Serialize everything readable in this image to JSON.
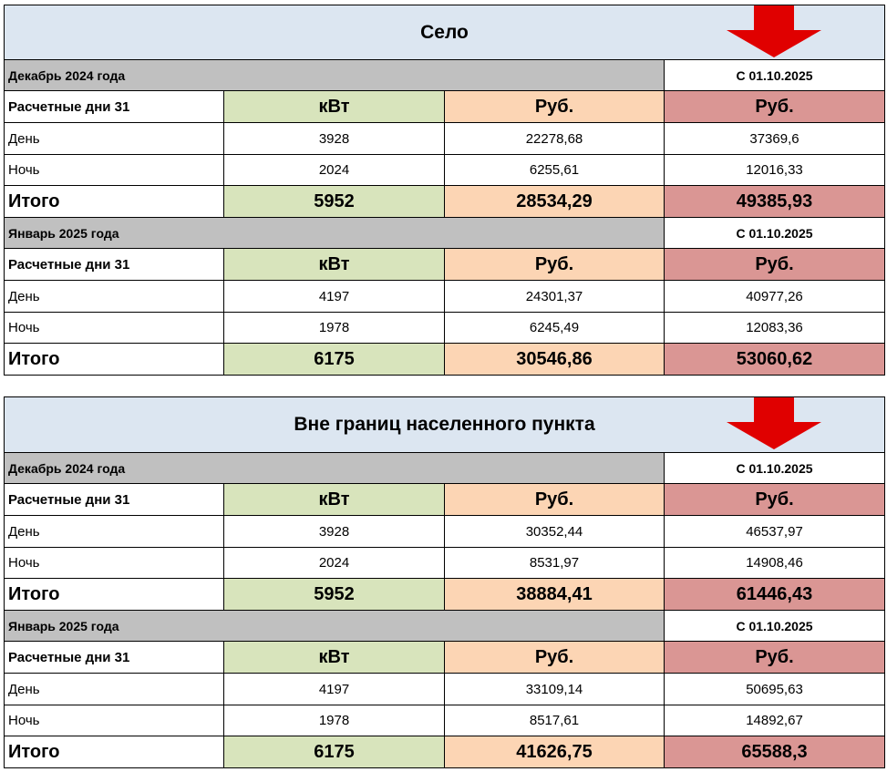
{
  "colors": {
    "title_bg": "#dce6f1",
    "period_bg": "#c0c0c0",
    "kwt_bg": "#d8e4bc",
    "rub_bg": "#fcd5b4",
    "rub_new_bg": "#da9694",
    "arrow": "#e00000"
  },
  "tables": [
    {
      "title": "Село",
      "blocks": [
        {
          "period": "Декабрь 2024 года",
          "since": "С 01.10.2025",
          "days_label": "Расчетные дни 31",
          "col_kwt": "кВт",
          "col_rub": "Руб.",
          "col_rub_new": "Руб.",
          "day": {
            "label": "День",
            "kwt": "3928",
            "rub": "22278,68",
            "rub_new": "37369,6"
          },
          "night": {
            "label": "Ночь",
            "kwt": "2024",
            "rub": "6255,61",
            "rub_new": "12016,33"
          },
          "total": {
            "label": "Итого",
            "kwt": "5952",
            "rub": "28534,29",
            "rub_new": "49385,93"
          }
        },
        {
          "period": "Январь 2025 года",
          "since": "С 01.10.2025",
          "days_label": "Расчетные дни 31",
          "col_kwt": "кВт",
          "col_rub": "Руб.",
          "col_rub_new": "Руб.",
          "day": {
            "label": "День",
            "kwt": "4197",
            "rub": "24301,37",
            "rub_new": "40977,26"
          },
          "night": {
            "label": "Ночь",
            "kwt": "1978",
            "rub": "6245,49",
            "rub_new": "12083,36"
          },
          "total": {
            "label": "Итого",
            "kwt": "6175",
            "rub": "30546,86",
            "rub_new": "53060,62"
          }
        }
      ]
    },
    {
      "title": "Вне границ населенного пункта",
      "blocks": [
        {
          "period": "Декабрь 2024 года",
          "since": "С 01.10.2025",
          "days_label": "Расчетные дни 31",
          "col_kwt": "кВт",
          "col_rub": "Руб.",
          "col_rub_new": "Руб.",
          "day": {
            "label": "День",
            "kwt": "3928",
            "rub": "30352,44",
            "rub_new": "46537,97"
          },
          "night": {
            "label": "Ночь",
            "kwt": "2024",
            "rub": "8531,97",
            "rub_new": "14908,46"
          },
          "total": {
            "label": "Итого",
            "kwt": "5952",
            "rub": "38884,41",
            "rub_new": "61446,43"
          }
        },
        {
          "period": "Январь 2025 года",
          "since": "С 01.10.2025",
          "days_label": "Расчетные дни 31",
          "col_kwt": "кВт",
          "col_rub": "Руб.",
          "col_rub_new": "Руб.",
          "day": {
            "label": "День",
            "kwt": "4197",
            "rub": "33109,14",
            "rub_new": "50695,63"
          },
          "night": {
            "label": "Ночь",
            "kwt": "1978",
            "rub": "8517,61",
            "rub_new": "14892,67"
          },
          "total": {
            "label": "Итого",
            "kwt": "6175",
            "rub": "41626,75",
            "rub_new": "65588,3"
          }
        }
      ]
    }
  ]
}
